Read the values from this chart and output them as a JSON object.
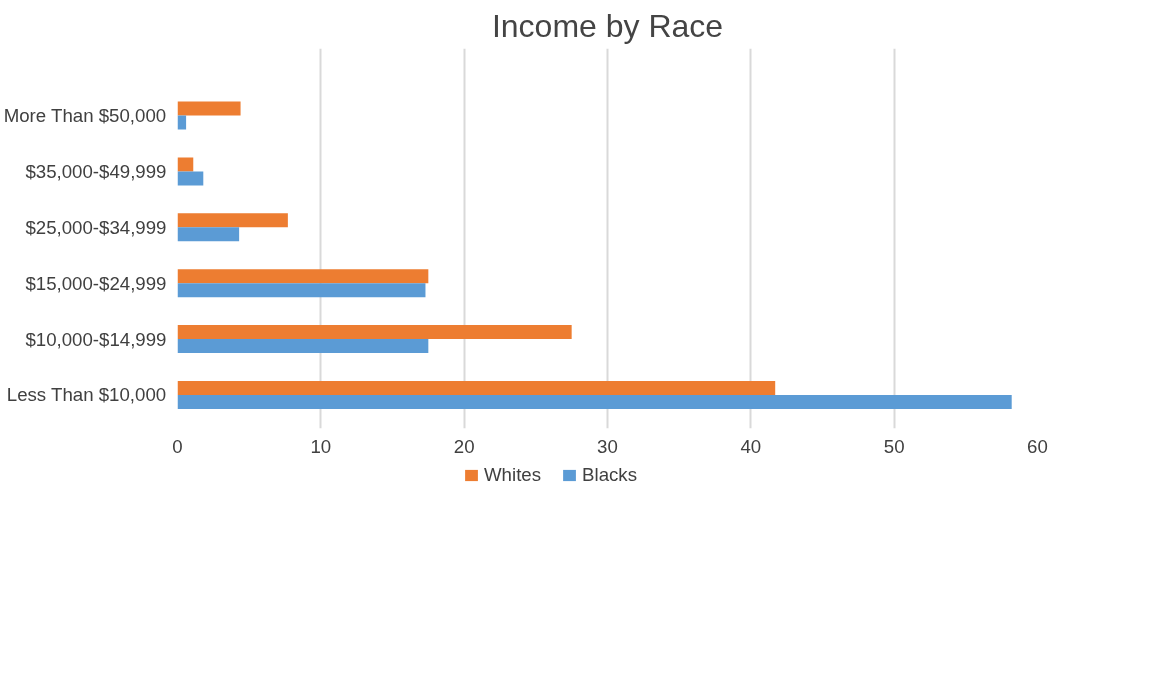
{
  "chart_data": {
    "type": "bar",
    "orientation": "horizontal",
    "title": "Income by Race",
    "categories": [
      "More Than $50,000",
      "$35,000-$49,999",
      "$25,000-$34,999",
      "$15,000-$24,999",
      "$10,000-$14,999",
      "Less Than $10,000"
    ],
    "series": [
      {
        "name": "Whites",
        "color": "#ed7d31",
        "values": [
          4.4,
          1.1,
          7.7,
          17.5,
          27.5,
          41.7
        ]
      },
      {
        "name": "Blacks",
        "color": "#5b9bd5",
        "values": [
          0.6,
          1.8,
          4.3,
          17.3,
          17.5,
          58.2
        ]
      }
    ],
    "xlim": [
      0,
      60
    ],
    "xticks": [
      0,
      10,
      20,
      30,
      40,
      50,
      60
    ],
    "grid": "x",
    "legend": "bottom"
  }
}
